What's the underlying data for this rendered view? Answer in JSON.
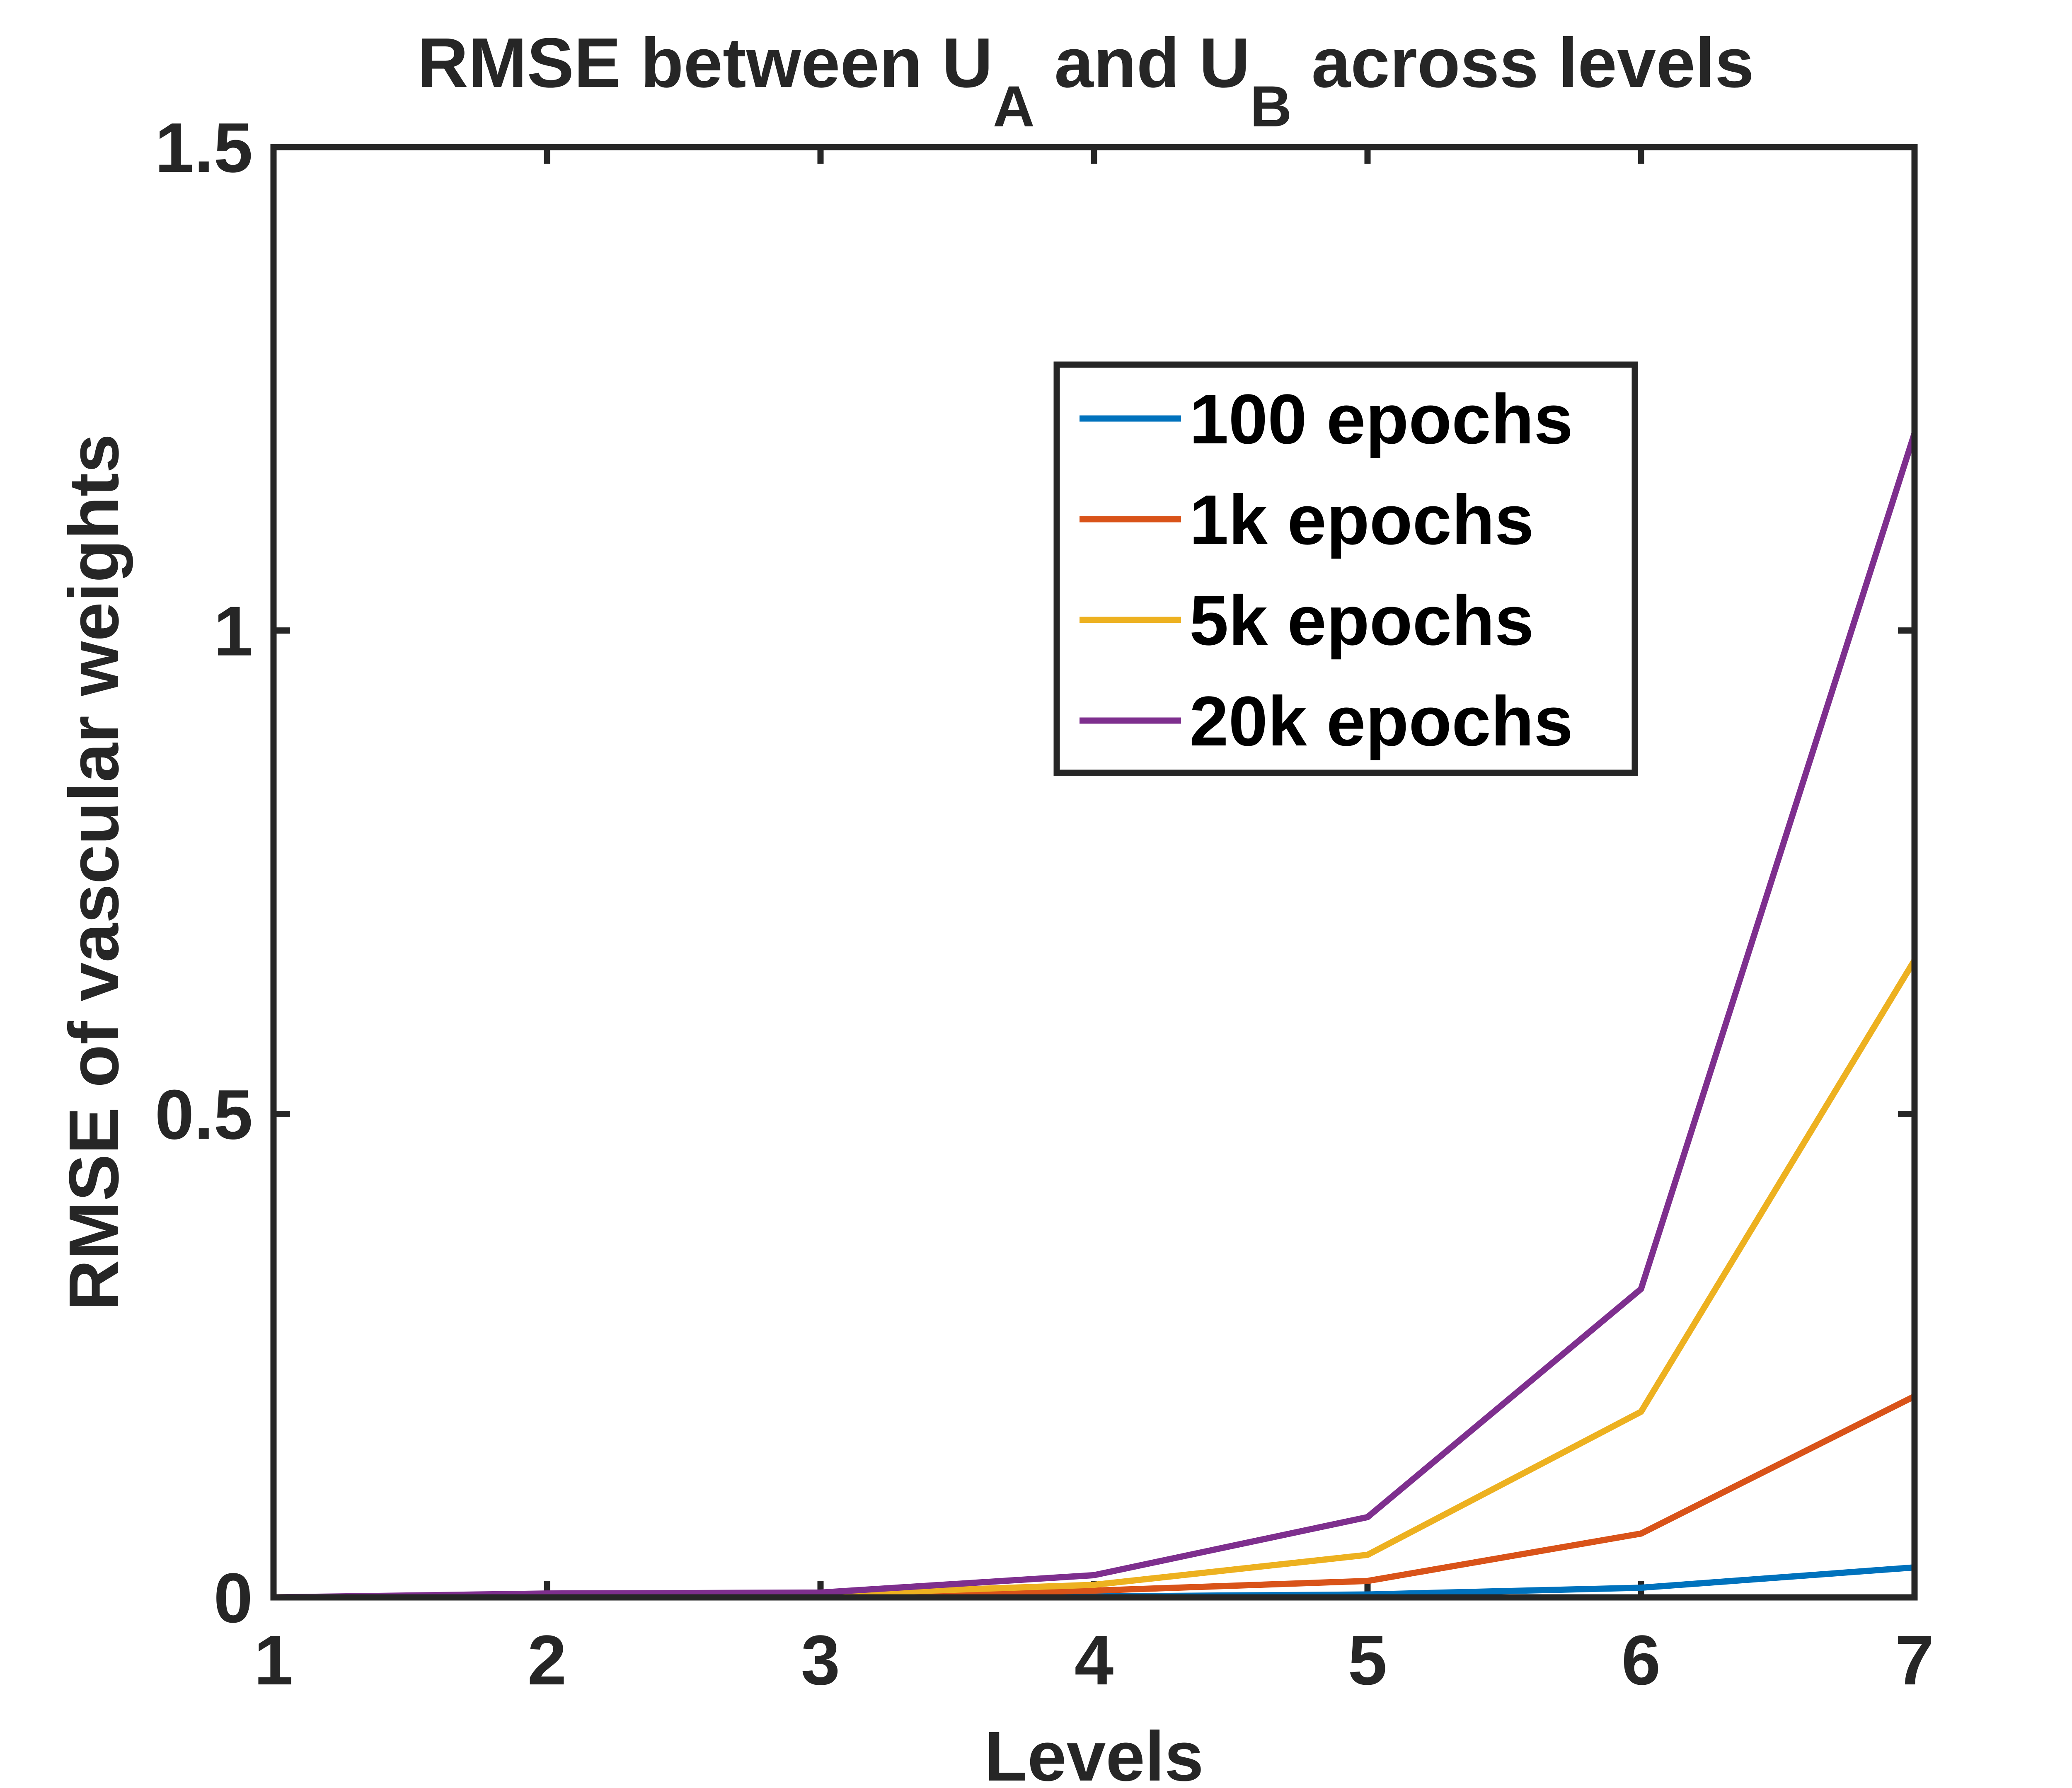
{
  "chart_data": {
    "type": "line",
    "title": {
      "prefix": "RMSE between U",
      "sub_a": "A",
      "middle": " and U",
      "sub_b": "B",
      "suffix": " across levels"
    },
    "xlabel": "Levels",
    "ylabel": "RMSE of vascular weights",
    "xlim": [
      1,
      7
    ],
    "ylim": [
      0,
      1.5
    ],
    "xticks": [
      1,
      2,
      3,
      4,
      5,
      6,
      7
    ],
    "xtick_labels": [
      "1",
      "2",
      "3",
      "4",
      "5",
      "6",
      "7"
    ],
    "yticks": [
      0,
      0.5,
      1,
      1.5
    ],
    "ytick_labels": [
      "0",
      "0.5",
      "1",
      "1.5"
    ],
    "grid": false,
    "legend_position": "top-right",
    "x": [
      1,
      2,
      3,
      4,
      5,
      6,
      7
    ],
    "series": [
      {
        "name": "100 epochs",
        "color": "#0072BD",
        "values": [
          0.0,
          0.0,
          0.0,
          0.001,
          0.003,
          0.01,
          0.031
        ]
      },
      {
        "name": "1k epochs",
        "color": "#D95319",
        "values": [
          0.0,
          0.001,
          0.002,
          0.007,
          0.017,
          0.066,
          0.208
        ]
      },
      {
        "name": "5k epochs",
        "color": "#EDB120",
        "values": [
          0.0,
          0.002,
          0.003,
          0.013,
          0.044,
          0.192,
          0.659
        ]
      },
      {
        "name": "20k epochs",
        "color": "#7E2F8E",
        "values": [
          0.0,
          0.004,
          0.005,
          0.023,
          0.083,
          0.319,
          1.204
        ]
      }
    ]
  }
}
